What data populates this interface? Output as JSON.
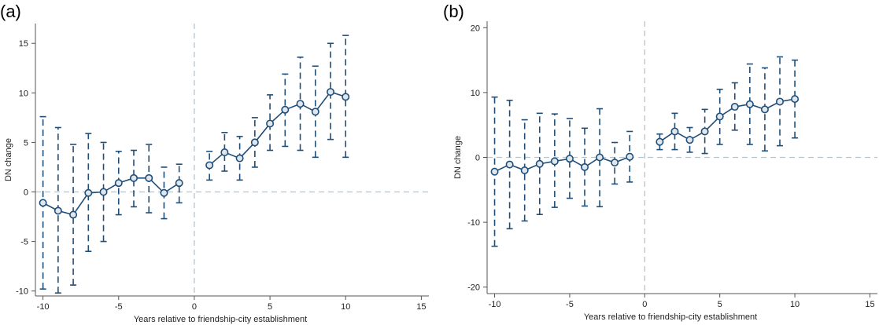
{
  "chart_data": [
    {
      "type": "line",
      "panel_label": "(a)",
      "xlabel": "Years relative to friendship-city establishment",
      "ylabel": "DN change",
      "xlim": [
        -10.5,
        15.5
      ],
      "ylim": [
        -10.5,
        17
      ],
      "xticks": [
        -10,
        -5,
        0,
        5,
        10,
        15
      ],
      "yticks": [
        -10,
        -5,
        0,
        5,
        10,
        15
      ],
      "grid": false,
      "reference_lines": {
        "x": 0,
        "y": 0
      },
      "series": [
        {
          "x": [
            -10,
            -9,
            -8,
            -7,
            -6,
            -5,
            -4,
            -3,
            -2,
            -1
          ],
          "y": [
            -1.1,
            -1.9,
            -2.3,
            -0.1,
            0.0,
            0.9,
            1.4,
            1.4,
            -0.1,
            0.9
          ],
          "ci_low": [
            -9.8,
            -10.2,
            -9.4,
            -6.0,
            -5.0,
            -2.3,
            -1.5,
            -2.1,
            -2.7,
            -1.1
          ],
          "ci_high": [
            7.6,
            6.5,
            4.8,
            5.9,
            5.0,
            4.1,
            4.2,
            4.8,
            2.5,
            2.8
          ]
        },
        {
          "x": [
            1,
            2,
            3,
            4,
            5,
            6,
            7,
            8,
            9,
            10
          ],
          "y": [
            2.7,
            4.0,
            3.4,
            5.0,
            6.9,
            8.3,
            8.9,
            8.1,
            10.1,
            9.6
          ],
          "ci_low": [
            1.2,
            2.1,
            1.2,
            2.5,
            4.2,
            4.6,
            4.2,
            3.5,
            5.3,
            3.5
          ],
          "ci_high": [
            4.1,
            6.0,
            5.6,
            7.5,
            9.8,
            11.9,
            13.6,
            12.7,
            15.0,
            15.8
          ]
        }
      ]
    },
    {
      "type": "line",
      "panel_label": "(b)",
      "xlabel": "Years relative to friendship-city establishment",
      "ylabel": "DN change",
      "xlim": [
        -10.5,
        15.5
      ],
      "ylim": [
        -21,
        21
      ],
      "xticks": [
        -10,
        -5,
        0,
        5,
        10,
        15
      ],
      "yticks": [
        -20,
        -10,
        0,
        10,
        20
      ],
      "grid": false,
      "reference_lines": {
        "x": 0,
        "y": 0
      },
      "series": [
        {
          "x": [
            -10,
            -9,
            -8,
            -7,
            -6,
            -5,
            -4,
            -3,
            -2,
            -1
          ],
          "y": [
            -2.2,
            -1.1,
            -2.0,
            -1.0,
            -0.6,
            -0.2,
            -1.5,
            0.0,
            -0.8,
            0.1
          ],
          "ci_low": [
            -13.7,
            -11.0,
            -9.8,
            -8.8,
            -7.7,
            -6.3,
            -7.5,
            -7.6,
            -4.1,
            -3.8
          ],
          "ci_high": [
            9.3,
            8.8,
            5.8,
            6.8,
            6.7,
            6.0,
            4.5,
            7.5,
            2.3,
            4.0
          ]
        },
        {
          "x": [
            1,
            2,
            3,
            4,
            5,
            6,
            7,
            8,
            9,
            10
          ],
          "y": [
            2.4,
            4.0,
            2.7,
            4.0,
            6.3,
            7.8,
            8.2,
            7.4,
            8.6,
            9.0
          ],
          "ci_low": [
            1.2,
            1.2,
            0.8,
            0.6,
            2.0,
            4.2,
            2.0,
            1.0,
            1.8,
            3.0
          ],
          "ci_high": [
            3.6,
            6.8,
            4.6,
            7.4,
            10.5,
            11.5,
            14.4,
            13.8,
            15.5,
            15.0
          ]
        }
      ]
    }
  ],
  "colors": {
    "series": "#1f4e79",
    "axis": "#555555",
    "reference": "#b8c4cc"
  }
}
